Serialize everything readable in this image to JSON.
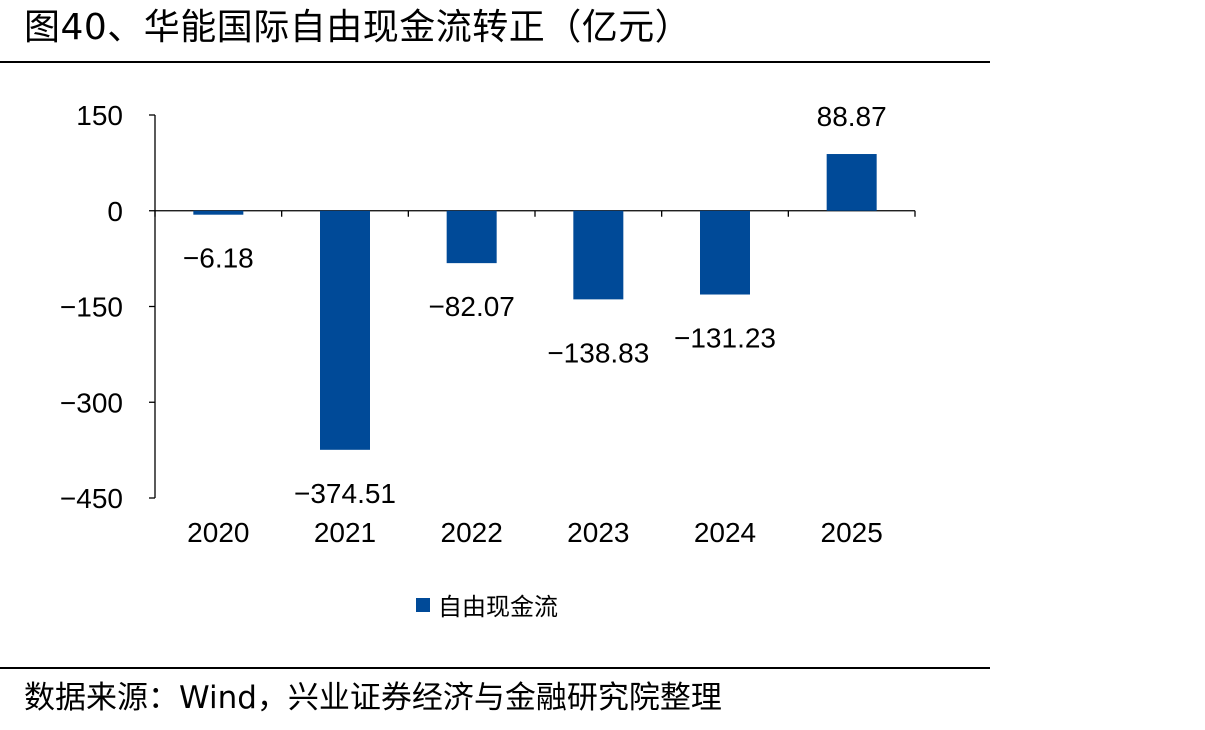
{
  "header": {
    "title": "图40、华能国际自由现金流转正（亿元）"
  },
  "footer": {
    "source": "数据来源：Wind，兴业证券经济与金融研究院整理"
  },
  "chart_data": {
    "type": "bar",
    "title": "",
    "xlabel": "",
    "ylabel": "",
    "categories": [
      "2020",
      "2021",
      "2022",
      "2023",
      "2024",
      "2025"
    ],
    "series": [
      {
        "name": "自由现金流",
        "values": [
          -6.18,
          -374.51,
          -82.07,
          -138.83,
          -131.23,
          88.87
        ],
        "labels": [
          "−6.18",
          "−374.51",
          "−82.07",
          "−138.83",
          "−131.23",
          "88.87"
        ],
        "color": "#004a98"
      }
    ],
    "ylim": [
      -450,
      150
    ],
    "yticks": [
      150,
      0,
      -150,
      -300,
      -450
    ],
    "ytick_labels": [
      "150",
      "0",
      "−150",
      "−300",
      "−450"
    ],
    "grid": false,
    "legend_position": "bottom"
  }
}
